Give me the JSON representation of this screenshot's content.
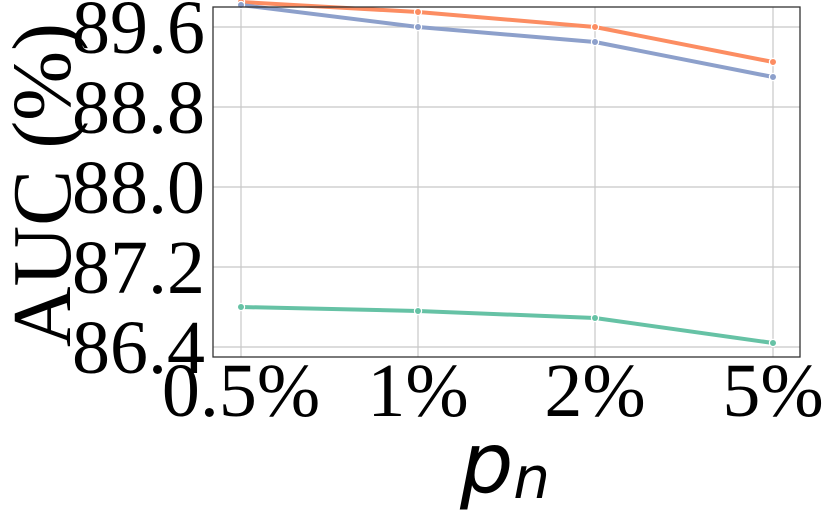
{
  "chart_data": {
    "type": "line",
    "title": "",
    "xlabel": "p",
    "xlabel_subscript": "n",
    "ylabel": "AUC (%)",
    "categories": [
      "0.5%",
      "1%",
      "2%",
      "5%"
    ],
    "yticks": [
      "86.4",
      "87.2",
      "88.0",
      "88.8",
      "89.6"
    ],
    "ylim": [
      86.3,
      89.8
    ],
    "grid": true,
    "legend": "none",
    "series": [
      {
        "color": "#fc8d62",
        "values": [
          89.85,
          89.75,
          89.6,
          89.25
        ]
      },
      {
        "color": "#8da0cb",
        "values": [
          89.82,
          89.6,
          89.45,
          89.1
        ]
      },
      {
        "color": "#66c2a5",
        "values": [
          86.8,
          86.76,
          86.69,
          86.44
        ]
      }
    ]
  }
}
